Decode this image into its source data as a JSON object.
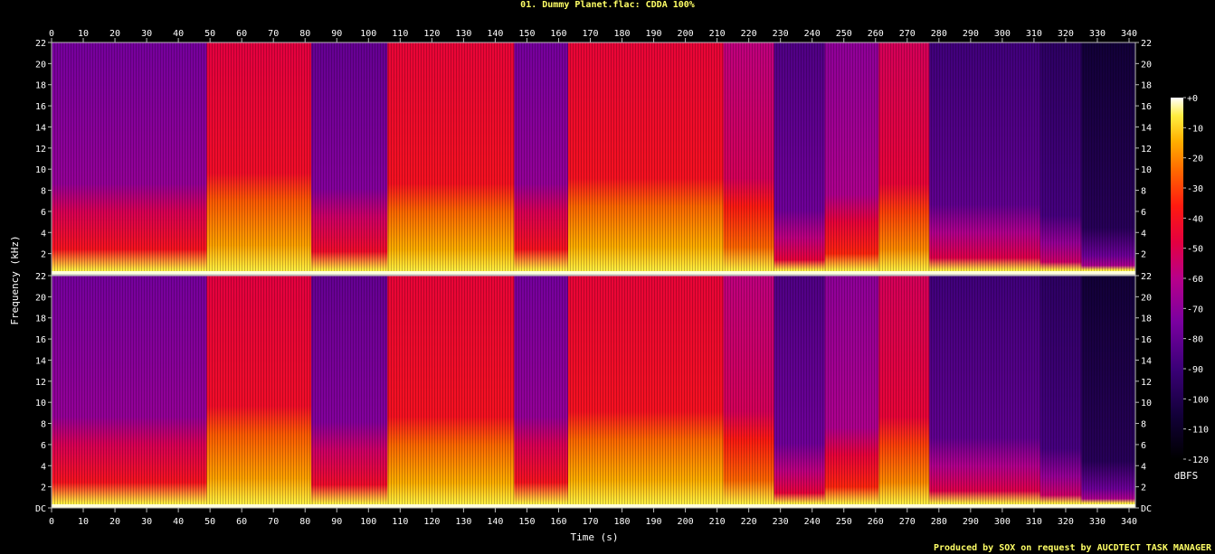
{
  "title": "01. Dummy Planet.flac: CDDA 100%",
  "footer": "Produced by SOX on request by AUCDTECT TASK MANAGER",
  "chart_data": {
    "type": "heatmap",
    "title": "01. Dummy Planet.flac: CDDA 100%",
    "xlabel": "Time (s)",
    "ylabel": "Frequency (kHz)",
    "colorbar_label": "dBFS",
    "xlim": [
      0,
      342
    ],
    "ylim": [
      0,
      22
    ],
    "x_ticks": [
      0,
      10,
      20,
      30,
      40,
      50,
      60,
      70,
      80,
      90,
      100,
      110,
      120,
      130,
      140,
      150,
      160,
      170,
      180,
      190,
      200,
      210,
      220,
      230,
      240,
      250,
      260,
      270,
      280,
      290,
      300,
      310,
      320,
      330,
      340
    ],
    "y_tick_labels": [
      "DC",
      "2",
      "4",
      "6",
      "8",
      "10",
      "12",
      "14",
      "16",
      "18",
      "20",
      "22"
    ],
    "y_tick_values": [
      0,
      2,
      4,
      6,
      8,
      10,
      12,
      14,
      16,
      18,
      20,
      22
    ],
    "colorbar_ticks": [
      "+0",
      "-10",
      "-20",
      "-30",
      "-40",
      "-50",
      "-60",
      "-70",
      "-80",
      "-90",
      "-100",
      "-110",
      "-120"
    ],
    "colorbar_range": [
      -120,
      0
    ],
    "channels": [
      "left",
      "right"
    ],
    "segments": [
      {
        "start": 0,
        "end": 49,
        "level_db": -85,
        "band_khz": 6.0
      },
      {
        "start": 49,
        "end": 82,
        "level_db": -60,
        "band_khz": 7.0
      },
      {
        "start": 82,
        "end": 106,
        "level_db": -88,
        "band_khz": 5.5
      },
      {
        "start": 106,
        "end": 146,
        "level_db": -58,
        "band_khz": 6.0
      },
      {
        "start": 146,
        "end": 163,
        "level_db": -85,
        "band_khz": 6.0
      },
      {
        "start": 163,
        "end": 212,
        "level_db": -58,
        "band_khz": 6.5
      },
      {
        "start": 212,
        "end": 228,
        "level_db": -70,
        "band_khz": 6.5
      },
      {
        "start": 228,
        "end": 244,
        "level_db": -92,
        "band_khz": 3.5
      },
      {
        "start": 244,
        "end": 261,
        "level_db": -80,
        "band_khz": 5.0
      },
      {
        "start": 261,
        "end": 277,
        "level_db": -64,
        "band_khz": 6.0
      },
      {
        "start": 277,
        "end": 312,
        "level_db": -95,
        "band_khz": 4.0
      },
      {
        "start": 312,
        "end": 325,
        "level_db": -100,
        "band_khz": 3.0
      },
      {
        "start": 325,
        "end": 342,
        "level_db": -108,
        "band_khz": 1.8
      }
    ],
    "palette": [
      "#000000",
      "#120038",
      "#3b0078",
      "#7a00a0",
      "#b8008a",
      "#e40040",
      "#ff1a10",
      "#ff6a00",
      "#ffb000",
      "#ffee40",
      "#ffffcc"
    ]
  }
}
